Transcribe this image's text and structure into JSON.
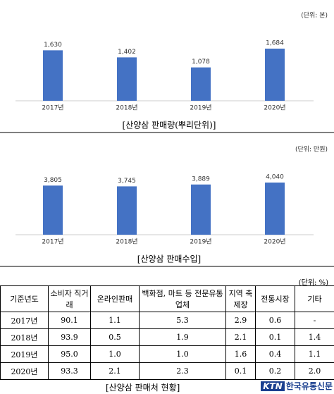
{
  "chart_data": [
    {
      "type": "bar",
      "title": "[산양삼 판매량(뿌리단위)]",
      "unit_note": "(단위: 본)",
      "categories": [
        "2017년",
        "2018년",
        "2019년",
        "2020년"
      ],
      "values": [
        1630,
        1402,
        1078,
        1684
      ],
      "value_labels": [
        "1,630",
        "1,402",
        "1,078",
        "1,684"
      ],
      "color": "#4472c4"
    },
    {
      "type": "bar",
      "title": "[산양삼 판매수입]",
      "unit_note": "(단위: 만원)",
      "categories": [
        "2017년",
        "2018년",
        "2019년",
        "2020년"
      ],
      "values": [
        3805,
        3745,
        3889,
        4040
      ],
      "value_labels": [
        "3,805",
        "3,745",
        "3,889",
        "4,040"
      ],
      "color": "#4472c4"
    }
  ],
  "table": {
    "unit_note": "(단위: %)",
    "caption": "[산양삼 판매처 현황]",
    "header": [
      "기준년도",
      "소비자 직거래",
      "온라인판매",
      "백화점, 마트 등 전문유통업체",
      "지역 축제장",
      "전통시장",
      "기타"
    ],
    "rows": [
      [
        "2017년",
        "90.1",
        "1.1",
        "5.3",
        "2.9",
        "0.6",
        "-"
      ],
      [
        "2018년",
        "93.9",
        "0.5",
        "1.9",
        "2.1",
        "0.1",
        "1.4"
      ],
      [
        "2019년",
        "95.0",
        "1.0",
        "1.0",
        "1.6",
        "0.4",
        "1.1"
      ],
      [
        "2020년",
        "93.3",
        "2.1",
        "2.3",
        "0.1",
        "0.2",
        "2.0"
      ]
    ]
  },
  "logo": {
    "mark": "KTN",
    "name": "한국유통신문"
  }
}
